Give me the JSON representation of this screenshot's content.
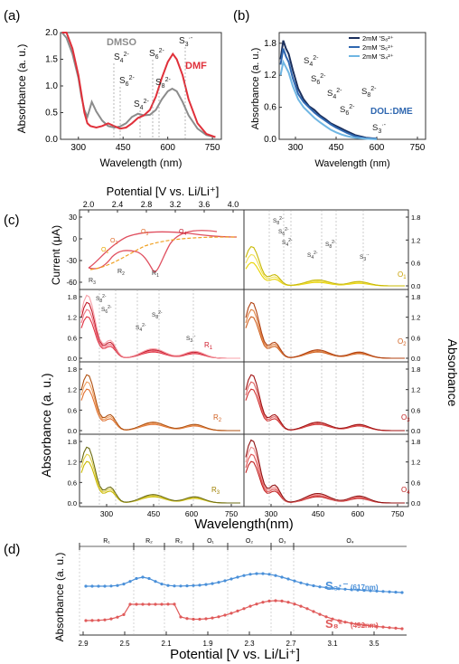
{
  "panels": {
    "a": {
      "label": "(a)"
    },
    "b": {
      "label": "(b)"
    },
    "c": {
      "label": "(c)"
    },
    "d": {
      "label": "(d)"
    }
  },
  "chart_data": [
    {
      "id": "a",
      "type": "line",
      "xlabel": "Wavelength (nm)",
      "ylabel": "Absorbance (a. u.)",
      "xlim": [
        240,
        780
      ],
      "ylim": [
        0.0,
        2.0
      ],
      "xticks": [
        "300",
        "450",
        "600",
        "750"
      ],
      "yticks": [
        "0.0",
        "0.5",
        "1.0",
        "1.5",
        "2.0"
      ],
      "series": [
        {
          "name": "DMSO",
          "color": "#8c8c8c",
          "x": [
            245,
            260,
            280,
            300,
            310,
            320,
            330,
            345,
            360,
            380,
            400,
            420,
            440,
            460,
            480,
            500,
            520,
            540,
            560,
            580,
            600,
            615,
            630,
            650,
            670,
            700,
            730,
            760
          ],
          "y": [
            2.0,
            1.9,
            1.6,
            1.15,
            0.8,
            0.55,
            0.42,
            0.7,
            0.52,
            0.35,
            0.25,
            0.22,
            0.24,
            0.3,
            0.42,
            0.48,
            0.45,
            0.46,
            0.55,
            0.75,
            0.9,
            0.95,
            0.9,
            0.7,
            0.45,
            0.2,
            0.08,
            0.04
          ]
        },
        {
          "name": "DMF",
          "color": "#e0303a",
          "x": [
            245,
            260,
            280,
            300,
            310,
            320,
            330,
            340,
            360,
            380,
            400,
            420,
            440,
            460,
            480,
            500,
            520,
            540,
            560,
            580,
            600,
            617,
            630,
            650,
            670,
            700,
            730,
            760
          ],
          "y": [
            2.0,
            2.0,
            1.7,
            1.2,
            0.85,
            0.5,
            0.3,
            0.25,
            0.22,
            0.25,
            0.3,
            0.25,
            0.2,
            0.22,
            0.3,
            0.4,
            0.45,
            0.55,
            0.8,
            1.15,
            1.45,
            1.6,
            1.5,
            1.2,
            0.75,
            0.3,
            0.1,
            0.04
          ]
        }
      ],
      "annotations": [
        "S4²⁻",
        "S6²⁻",
        "S4²⁻",
        "S6²⁻",
        "S8²⁻",
        "S3·⁻"
      ]
    },
    {
      "id": "b",
      "type": "line",
      "xlabel": "Wavelength (nm)",
      "ylabel": "Absorbance (a. u.)",
      "xlim": [
        240,
        780
      ],
      "ylim": [
        0.0,
        2.0
      ],
      "xticks": [
        "300",
        "450",
        "600",
        "750"
      ],
      "yticks": [
        "0.0",
        "0.6",
        "1.2",
        "1.8"
      ],
      "legend": {
        "position": "top-right",
        "items": [
          "2mM 'S₈²⁺",
          "2mM 'S₆²⁺",
          "2mM 'S₄²⁺"
        ]
      },
      "series": [
        {
          "name": "2mM 'S₈²⁺",
          "color": "#1b2f5c",
          "x": [
            245,
            255,
            265,
            275,
            290,
            310,
            330,
            350,
            370,
            390,
            410,
            430,
            450,
            470,
            490,
            520,
            560,
            600
          ],
          "y": [
            1.5,
            1.85,
            1.7,
            1.6,
            1.3,
            0.95,
            0.75,
            0.62,
            0.55,
            0.45,
            0.38,
            0.3,
            0.25,
            0.2,
            0.15,
            0.08,
            0.03,
            0.01
          ]
        },
        {
          "name": "2mM 'S₆²⁺",
          "color": "#2f67b0",
          "x": [
            245,
            255,
            265,
            275,
            290,
            310,
            330,
            350,
            370,
            390,
            410,
            430,
            450,
            470,
            490,
            520,
            560,
            600
          ],
          "y": [
            1.4,
            1.7,
            1.55,
            1.45,
            1.15,
            0.85,
            0.7,
            0.6,
            0.5,
            0.42,
            0.35,
            0.28,
            0.22,
            0.17,
            0.12,
            0.06,
            0.02,
            0.01
          ]
        },
        {
          "name": "2mM 'S₄²⁺",
          "color": "#6fb6e3",
          "x": [
            245,
            255,
            265,
            275,
            290,
            310,
            330,
            350,
            370,
            390,
            410,
            430,
            450,
            470,
            490,
            520,
            560,
            600
          ],
          "y": [
            1.2,
            1.45,
            1.35,
            1.25,
            1.0,
            0.75,
            0.6,
            0.5,
            0.4,
            0.32,
            0.25,
            0.18,
            0.13,
            0.09,
            0.06,
            0.03,
            0.01,
            0.0
          ]
        }
      ],
      "note": "DOL:DME",
      "annotations": [
        "S4²⁻",
        "S6²⁻",
        "S4²⁻",
        "S6²⁻",
        "S8²⁻",
        "S3·⁻"
      ]
    },
    {
      "id": "c-cv",
      "type": "line",
      "xlabel": "Potential [V vs. Li/Li⁺]",
      "ylabel": "Current (μA)",
      "xticks": [
        "2.0",
        "2.4",
        "2.8",
        "3.2",
        "3.6",
        "4.0"
      ],
      "yticks": [
        "30",
        "0",
        "-30",
        "-60"
      ],
      "points": [
        "O₁",
        "O₂",
        "O₃",
        "O₄",
        "R₁",
        "R₂",
        "R₃"
      ]
    },
    {
      "id": "c-spectra",
      "type": "line",
      "xlabel": "Wavelength(nm)",
      "ylabel_left": "Absorbance (a. u.)",
      "ylabel_right": "Absorbance",
      "xticks": [
        "300",
        "450",
        "600",
        "750"
      ],
      "yticks": [
        "0.0",
        "0.6",
        "1.2",
        "1.8"
      ],
      "subpanels": [
        "O₁",
        "R₁",
        "O₂",
        "R₂",
        "O₃",
        "R₃",
        "O₄"
      ],
      "species": [
        "S₈²⁻",
        "S₆²⁻",
        "S₄²⁻",
        "S₃·⁻"
      ]
    },
    {
      "id": "d",
      "type": "line",
      "xlabel": "Potential [V vs. Li/Li⁺]",
      "ylabel": "Absorbance (a. u.)",
      "xticks": [
        "2.9",
        "2.5",
        "2.1",
        "1.9",
        "2.3",
        "2.7",
        "3.1",
        "3.5"
      ],
      "regions": [
        "R₁",
        "R₂",
        "R₃",
        "O₁",
        "O₂",
        "O₃",
        "O₄"
      ],
      "series": [
        {
          "name": "S₃·⁻ (617nm)",
          "color": "#4a90d9"
        },
        {
          "name": "S₈²⁻ (492nm)",
          "color": "#e05a5a"
        }
      ]
    }
  ],
  "text": {
    "a_dmso": "DMSO",
    "a_dmf": "DMF",
    "b_note": "DOL:DME",
    "c_top_axis": "Potential [V vs. Li/Li⁺]",
    "c_current": "Current (μA)",
    "c_abs_left": "Absorbance (a. u.)",
    "c_abs_right": "Absorbance",
    "c_xlabel": "Wavelength(nm)",
    "d_ylabel": "Absorbance (a. u.)",
    "d_xlabel": "Potential [V vs. Li/Li⁺]",
    "d_s3": "S₃·⁻",
    "d_s3_wl": "(617nm)",
    "d_s8": "S₈²⁻",
    "d_s8_wl": "(492nm)",
    "a_ylabel": "Absorbance (a. u.)",
    "a_xlabel": "Wavelength (nm)",
    "b_ylabel": "Absorbance (a. u.)",
    "b_xlabel": "Wavelength (nm)"
  }
}
